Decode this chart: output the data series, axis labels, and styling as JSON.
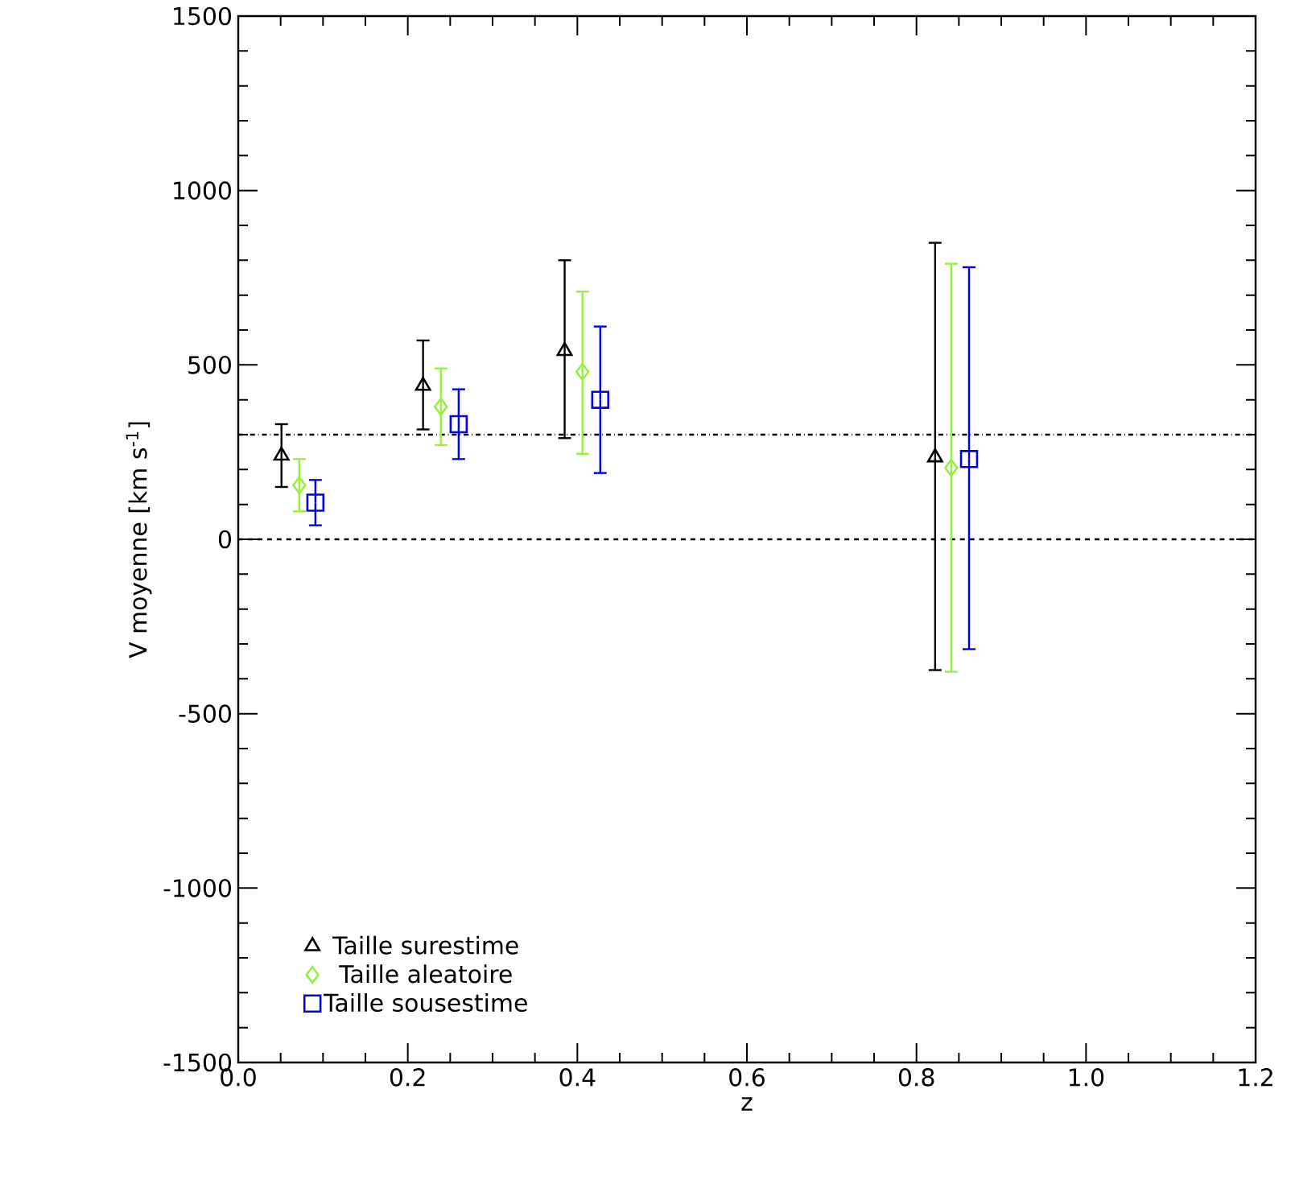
{
  "chart_data": {
    "type": "scatter",
    "xlabel": "z",
    "ylabel": "V moyenne [km s$^{-1}$]",
    "xlim": [
      0,
      1.2
    ],
    "ylim": [
      -1500,
      1500
    ],
    "xticks": [
      {
        "value": 0,
        "label": "0.0"
      },
      {
        "value": 0.2,
        "label": "0.2"
      },
      {
        "value": 0.4,
        "label": "0.4"
      },
      {
        "value": 0.6,
        "label": "0.6"
      },
      {
        "value": 0.8,
        "label": "0.8"
      },
      {
        "value": 1.0,
        "label": "1.0"
      },
      {
        "value": 1.2,
        "label": "1.2"
      }
    ],
    "yticks": [
      -1500,
      -1000,
      -500,
      0,
      500,
      1000,
      1500
    ],
    "grid": false,
    "legend": "bottom left",
    "ref_lines": [
      {
        "axis": "y",
        "value": 300,
        "line_style": "dashdot",
        "color": "#000000"
      },
      {
        "axis": "y",
        "value": 0,
        "line_style": "dashed",
        "color": "#000000"
      }
    ],
    "series": [
      {
        "name": "Taille surestime",
        "color": "#000000",
        "marker": "triangle",
        "x": [
          0.051,
          0.218,
          0.385,
          0.822
        ],
        "values": [
          240,
          440,
          540,
          235
        ],
        "errors": [
          [
            150,
            330
          ],
          [
            315,
            570
          ],
          [
            290,
            800
          ],
          [
            -375,
            850
          ]
        ]
      },
      {
        "name": "Taille aleatoire",
        "color": "#99ee44",
        "marker": "diamond",
        "x": [
          0.072,
          0.239,
          0.406,
          0.841
        ],
        "values": [
          155,
          380,
          480,
          205
        ],
        "errors": [
          [
            80,
            230
          ],
          [
            270,
            490
          ],
          [
            245,
            710
          ],
          [
            -380,
            790
          ]
        ]
      },
      {
        "name": "Taille sousestime",
        "color": "#0000ee",
        "marker": "square",
        "x": [
          0.091,
          0.26,
          0.427,
          0.862
        ],
        "values": [
          105,
          330,
          400,
          230
        ],
        "errors": [
          [
            40,
            170
          ],
          [
            230,
            430
          ],
          [
            190,
            610
          ],
          [
            -315,
            780
          ]
        ]
      }
    ]
  }
}
